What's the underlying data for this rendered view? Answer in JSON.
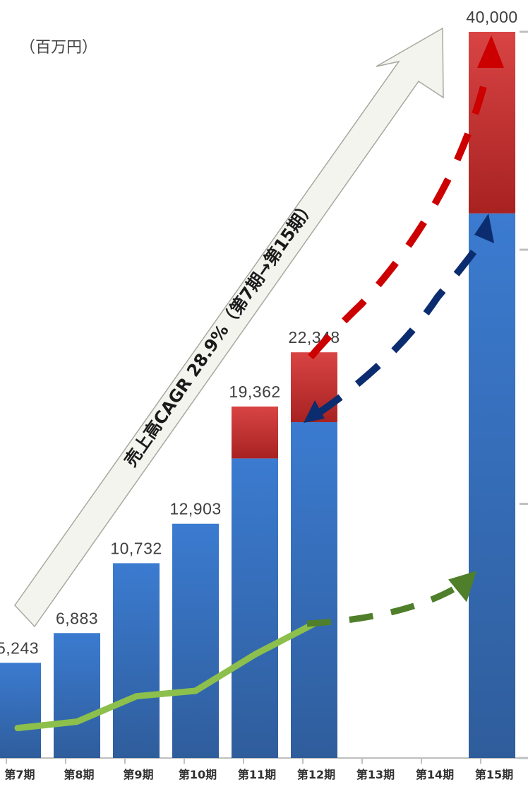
{
  "chart_data": {
    "type": "bar",
    "unit_label": "（百万円）",
    "categories": [
      "第7期",
      "第8期",
      "第9期",
      "第10期",
      "第11期",
      "第12期",
      "第13期",
      "第14期",
      "第15期"
    ],
    "stack_base": [
      5243,
      6883,
      10732,
      12903,
      16500,
      18500,
      null,
      null,
      30000
    ],
    "stack_top": [
      0,
      0,
      0,
      0,
      2862,
      3848,
      null,
      null,
      10000
    ],
    "data_labels": [
      "5,243",
      "6,883",
      "10,732",
      "12,903",
      "19,362",
      "22,348",
      null,
      null,
      "40,000"
    ],
    "line_values": [
      1650,
      2000,
      3400,
      3700,
      5700,
      7400
    ],
    "projection_line": {
      "from": [
        5,
        7400
      ],
      "to": [
        8,
        10300
      ]
    },
    "ylim": [
      0,
      40000
    ],
    "annotation": "売上高CAGR 28.9%（第7期→第15期）",
    "colors": {
      "bar": "#3a76c4",
      "bar_dark": "#2f5e9e",
      "bar_top": "#d23b3b",
      "bar_top_dark": "#a52424",
      "line": "#8cbf4c",
      "proj_green": "#4f7f2a",
      "arrow_red": "#cc0000",
      "arrow_blue": "#0b2c6e"
    }
  }
}
